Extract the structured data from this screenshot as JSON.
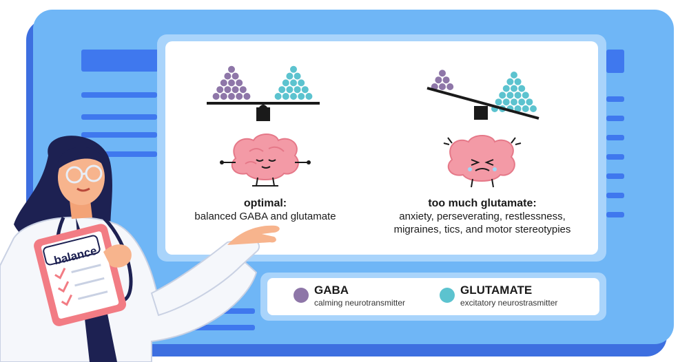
{
  "colors": {
    "gaba": "#8e76a8",
    "glutamate": "#5cc3cf",
    "brain": "#f39aa6",
    "board": "#6fb6f6",
    "board_dark": "#3f78ee"
  },
  "left_scene": {
    "heading": "optimal:",
    "description": "balanced GABA and glutamate"
  },
  "right_scene": {
    "heading": "too much glutamate:",
    "description_line1": "anxiety, perseverating, restlessness,",
    "description_line2": "migraines, tics, and motor stereotypies"
  },
  "clipboard": {
    "label": "balance"
  },
  "legend": {
    "gaba": {
      "name": "GABA",
      "description": "calming neurotransmitter",
      "icon": "purple-dot"
    },
    "glutamate": {
      "name": "GLUTAMATE",
      "description": "excitatory neurostrasmitter",
      "icon": "teal-dot"
    }
  }
}
